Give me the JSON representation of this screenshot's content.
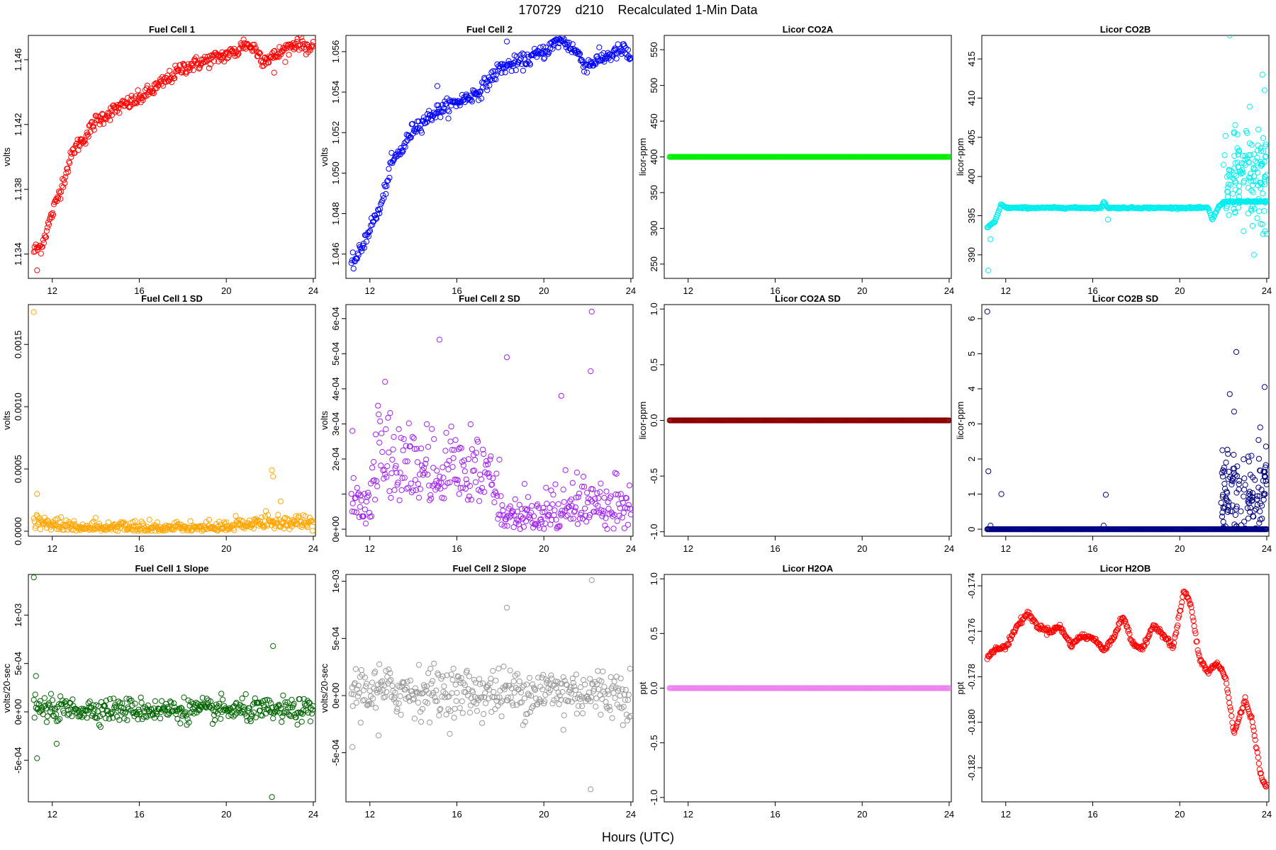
{
  "figure": {
    "title": "170729    d210    Recalculated 1-Min Data",
    "xlabel": "Hours (UTC)"
  },
  "chart_data": [
    {
      "type": "scatter",
      "title": "Fuel Cell 1",
      "ylabel": "volts",
      "color": "#ff0000",
      "xlim": [
        10.9,
        24.1
      ],
      "ylim": [
        1.1325,
        1.1475
      ],
      "xticks": [
        12,
        16,
        20,
        24
      ],
      "yticks": [
        1.134,
        1.138,
        1.142,
        1.146
      ],
      "ytick_labels": [
        "1.134",
        "1.138",
        "1.142",
        "1.146"
      ],
      "pattern": "curve",
      "noise": 0.00022,
      "anchors": [
        [
          11.15,
          1.1342
        ],
        [
          11.5,
          1.1345
        ],
        [
          12,
          1.1365
        ],
        [
          12.5,
          1.1385
        ],
        [
          13,
          1.1405
        ],
        [
          13.5,
          1.1412
        ],
        [
          14,
          1.1422
        ],
        [
          15,
          1.143
        ],
        [
          16,
          1.1436
        ],
        [
          17,
          1.1445
        ],
        [
          18,
          1.1455
        ],
        [
          19,
          1.1459
        ],
        [
          20,
          1.1463
        ],
        [
          20.5,
          1.1465
        ],
        [
          20.8,
          1.147
        ],
        [
          21.3,
          1.1467
        ],
        [
          21.7,
          1.146
        ],
        [
          22.2,
          1.1462
        ],
        [
          22.8,
          1.1467
        ],
        [
          23.3,
          1.1471
        ],
        [
          24,
          1.1466
        ]
      ],
      "outliers": [
        [
          11.3,
          1.133
        ],
        [
          22.2,
          1.1452
        ]
      ]
    },
    {
      "type": "scatter",
      "title": "Fuel Cell 2",
      "ylabel": "volts",
      "color": "#0000ff",
      "xlim": [
        10.9,
        24.1
      ],
      "ylim": [
        1.0448,
        1.0568
      ],
      "xticks": [
        12,
        16,
        20,
        24
      ],
      "yticks": [
        1.046,
        1.048,
        1.05,
        1.052,
        1.054,
        1.056
      ],
      "ytick_labels": [
        "1.046",
        "1.048",
        "1.050",
        "1.052",
        "1.054",
        "1.056"
      ],
      "pattern": "curve",
      "noise": 0.00018,
      "anchors": [
        [
          11.15,
          1.0455
        ],
        [
          11.5,
          1.046
        ],
        [
          12,
          1.0473
        ],
        [
          12.5,
          1.0483
        ],
        [
          13,
          1.0505
        ],
        [
          13.5,
          1.0512
        ],
        [
          14,
          1.0522
        ],
        [
          15,
          1.053
        ],
        [
          16,
          1.0535
        ],
        [
          17,
          1.054
        ],
        [
          18,
          1.0552
        ],
        [
          19,
          1.0555
        ],
        [
          20,
          1.056
        ],
        [
          20.8,
          1.0566
        ],
        [
          21.5,
          1.056
        ],
        [
          21.9,
          1.0553
        ],
        [
          22.5,
          1.0556
        ],
        [
          23.2,
          1.0559
        ],
        [
          23.7,
          1.0561
        ],
        [
          24,
          1.0556
        ]
      ],
      "outliers": [
        [
          15.1,
          1.0543
        ],
        [
          18.3,
          1.0565
        ]
      ]
    },
    {
      "type": "scatter",
      "title": "Licor CO2A",
      "ylabel": "licor-ppm",
      "color": "#00ee00",
      "xlim": [
        10.9,
        24.1
      ],
      "ylim": [
        230,
        570
      ],
      "xticks": [
        12,
        16,
        20,
        24
      ],
      "yticks": [
        250,
        300,
        350,
        400,
        450,
        500,
        550
      ],
      "ytick_labels": [
        "250",
        "300",
        "350",
        "400",
        "450",
        "500",
        "550"
      ],
      "pattern": "flat",
      "value": 400,
      "noise": 0,
      "anchors": [],
      "outliers": []
    },
    {
      "type": "scatter",
      "title": "Licor CO2B",
      "ylabel": "licor-ppm",
      "color": "#00eeee",
      "xlim": [
        10.9,
        24.1
      ],
      "ylim": [
        387,
        418
      ],
      "xticks": [
        12,
        16,
        20,
        24
      ],
      "yticks": [
        390,
        395,
        400,
        405,
        410,
        415
      ],
      "ytick_labels": [
        "390",
        "395",
        "400",
        "405",
        "410",
        "415"
      ],
      "pattern": "curve",
      "noise": 0.05,
      "anchors": [
        [
          11.15,
          393.5
        ],
        [
          11.5,
          394.2
        ],
        [
          11.8,
          396.5
        ],
        [
          12,
          396.0
        ],
        [
          16.4,
          396.0
        ],
        [
          16.5,
          396.8
        ],
        [
          16.7,
          396.0
        ],
        [
          21.3,
          396.0
        ],
        [
          21.5,
          394.5
        ],
        [
          21.8,
          396.2
        ],
        [
          22.1,
          396.8
        ],
        [
          24,
          396.8
        ]
      ],
      "burst": {
        "from": 22.0,
        "to": 24.0,
        "center": 400,
        "spread": 3.5,
        "count": 140
      },
      "outliers": [
        [
          11.2,
          388
        ],
        [
          11.3,
          392
        ],
        [
          16.7,
          394.5
        ],
        [
          22.3,
          418
        ],
        [
          23.8,
          413
        ],
        [
          23.9,
          411
        ],
        [
          22.5,
          405.5
        ]
      ]
    },
    {
      "type": "scatter",
      "title": "Fuel Cell 1 SD",
      "ylabel": "volts",
      "color": "#ffa500",
      "xlim": [
        10.9,
        24.1
      ],
      "ylim": [
        -4e-05,
        0.00182
      ],
      "xticks": [
        12,
        16,
        20,
        24
      ],
      "yticks": [
        0,
        0.0005,
        0.001,
        0.0015
      ],
      "ytick_labels": [
        "0.0000",
        "0.0005",
        "0.0010",
        "0.0015"
      ],
      "pattern": "noisefloor",
      "base": 4e-05,
      "noise": 3.5e-05,
      "anchors": [
        [
          11,
          6e-05
        ],
        [
          12,
          7e-05
        ],
        [
          13,
          3e-05
        ],
        [
          20,
          3e-05
        ],
        [
          20.5,
          7e-05
        ],
        [
          21,
          4e-05
        ],
        [
          22,
          8e-05
        ],
        [
          24,
          6e-05
        ]
      ],
      "outliers": [
        [
          11.15,
          0.00176
        ],
        [
          11.3,
          0.0003
        ],
        [
          22.1,
          0.00049
        ],
        [
          22.15,
          0.00044
        ],
        [
          22.5,
          0.00024
        ]
      ]
    },
    {
      "type": "scatter",
      "title": "Fuel Cell 2 SD",
      "ylabel": "volts",
      "color": "#a020f0",
      "xlim": [
        10.9,
        24.1
      ],
      "ylim": [
        -2e-05,
        0.00064
      ],
      "xticks": [
        12,
        16,
        20,
        24
      ],
      "yticks": [
        0,
        0.0001,
        0.0002,
        0.0003,
        0.0004,
        0.0005,
        0.0006
      ],
      "ytick_labels": [
        "0e+00",
        "",
        "2e-04",
        "3e-04",
        "4e-04",
        "5e-04",
        "6e-04"
      ],
      "pattern": "noisefloor",
      "noise": 5e-05,
      "anchors": [
        [
          11,
          9e-05
        ],
        [
          12,
          8e-05
        ],
        [
          12.5,
          0.00025
        ],
        [
          13,
          0.00018
        ],
        [
          16,
          0.00018
        ],
        [
          17.5,
          0.00015
        ],
        [
          18.2,
          3e-05
        ],
        [
          19.5,
          3e-05
        ],
        [
          20.5,
          5e-05
        ],
        [
          22,
          7e-05
        ],
        [
          24,
          8e-05
        ]
      ],
      "outliers": [
        [
          15.2,
          0.00054
        ],
        [
          18.3,
          0.00049
        ],
        [
          20.8,
          0.00038
        ],
        [
          22.2,
          0.00062
        ],
        [
          22.15,
          0.00045
        ],
        [
          11.2,
          0.00028
        ],
        [
          12.7,
          0.00042
        ]
      ]
    },
    {
      "type": "scatter",
      "title": "Licor CO2A SD",
      "ylabel": "licor-ppm",
      "color": "#8b0000",
      "xlim": [
        10.9,
        24.1
      ],
      "ylim": [
        -1.04,
        1.04
      ],
      "xticks": [
        12,
        16,
        20,
        24
      ],
      "yticks": [
        -1,
        -0.5,
        0,
        0.5,
        1
      ],
      "ytick_labels": [
        "-1.0",
        "-0.5",
        "0.0",
        "0.5",
        "1.0"
      ],
      "pattern": "flat",
      "value": 0,
      "noise": 0,
      "anchors": [],
      "outliers": []
    },
    {
      "type": "scatter",
      "title": "Licor CO2B SD",
      "ylabel": "licor-ppm",
      "color": "#000080",
      "xlim": [
        10.9,
        24.1
      ],
      "ylim": [
        -0.2,
        6.4
      ],
      "xticks": [
        12,
        16,
        20,
        24
      ],
      "yticks": [
        0,
        1,
        2,
        3,
        4,
        5,
        6
      ],
      "ytick_labels": [
        "0",
        "1",
        "2",
        "3",
        "4",
        "5",
        "6"
      ],
      "pattern": "flat",
      "value": 0,
      "noise": 0,
      "anchors": [],
      "burst": {
        "from": 21.9,
        "to": 24.0,
        "center": 0.9,
        "spread": 0.75,
        "count": 130
      },
      "outliers": [
        [
          11.15,
          6.2
        ],
        [
          11.2,
          1.65
        ],
        [
          11.8,
          1.0
        ],
        [
          11.3,
          0.1
        ],
        [
          16.6,
          0.98
        ],
        [
          16.5,
          0.1
        ],
        [
          22.3,
          3.85
        ],
        [
          22.5,
          3.35
        ],
        [
          22.6,
          5.05
        ],
        [
          23.9,
          4.05
        ],
        [
          23.7,
          2.9
        ]
      ]
    },
    {
      "type": "scatter",
      "title": "Fuel Cell 1 Slope",
      "ylabel": "volts/20-sec",
      "color": "#006400",
      "xlim": [
        10.9,
        24.1
      ],
      "ylim": [
        -0.00093,
        0.00142
      ],
      "xticks": [
        12,
        16,
        20,
        24
      ],
      "yticks": [
        -0.0005,
        0,
        0.0005,
        0.001
      ],
      "ytick_labels": [
        "-5e-04",
        "0e+00",
        "5e-04",
        "1e-03"
      ],
      "pattern": "noisefloor",
      "noise": 6e-05,
      "anchors": [
        [
          11,
          3e-05
        ],
        [
          24,
          1e-05
        ]
      ],
      "outliers": [
        [
          11.15,
          0.00139
        ],
        [
          11.25,
          0.00037
        ],
        [
          11.3,
          -0.00048
        ],
        [
          12.2,
          -0.00033
        ],
        [
          22.15,
          0.00068
        ],
        [
          22.1,
          -0.00088
        ]
      ]
    },
    {
      "type": "scatter",
      "title": "Fuel Cell 2 Slope",
      "ylabel": "volts/20-sec",
      "color": "#999999",
      "xlim": [
        10.9,
        24.1
      ],
      "ylim": [
        -0.00093,
        0.00106
      ],
      "xticks": [
        12,
        16,
        20,
        24
      ],
      "yticks": [
        -0.0005,
        0,
        0.0005,
        0.001
      ],
      "ytick_labels": [
        "-5e-04",
        "0e+00",
        "5e-04",
        "1e-03"
      ],
      "pattern": "noisefloor",
      "noise": 0.00011,
      "anchors": [
        [
          11,
          5e-05
        ],
        [
          18,
          2e-05
        ],
        [
          20,
          4e-05
        ],
        [
          24,
          2e-05
        ]
      ],
      "outliers": [
        [
          18.3,
          0.00077
        ],
        [
          22.2,
          0.00101
        ],
        [
          22.15,
          -0.00082
        ],
        [
          11.2,
          -0.00045
        ],
        [
          12.4,
          -0.00035
        ],
        [
          20.9,
          -0.0003
        ]
      ]
    },
    {
      "type": "scatter",
      "title": "Licor H2OA",
      "ylabel": "ppt",
      "color": "#ee82ee",
      "xlim": [
        10.9,
        24.1
      ],
      "ylim": [
        -1.04,
        1.04
      ],
      "xticks": [
        12,
        16,
        20,
        24
      ],
      "yticks": [
        -1,
        -0.5,
        0,
        0.5,
        1
      ],
      "ytick_labels": [
        "-1.0",
        "-0.5",
        "0.0",
        "0.5",
        "1.0"
      ],
      "pattern": "flat",
      "value": 0,
      "noise": 0,
      "anchors": [],
      "outliers": []
    },
    {
      "type": "scatter",
      "title": "Licor H2OB",
      "ylabel": "ppt",
      "color": "#ff0000",
      "xlim": [
        10.9,
        24.1
      ],
      "ylim": [
        -0.1835,
        -0.1735
      ],
      "xticks": [
        12,
        16,
        20,
        24
      ],
      "yticks": [
        -0.182,
        -0.18,
        -0.178,
        -0.176,
        -0.174
      ],
      "ytick_labels": [
        "-0.182",
        "-0.180",
        "-0.178",
        "-0.176",
        "-0.174"
      ],
      "pattern": "curve",
      "noise": 6e-05,
      "anchors": [
        [
          11.15,
          -0.1772
        ],
        [
          11.5,
          -0.1768
        ],
        [
          12,
          -0.1767
        ],
        [
          12.5,
          -0.1758
        ],
        [
          13,
          -0.1752
        ],
        [
          13.5,
          -0.1758
        ],
        [
          14,
          -0.176
        ],
        [
          14.5,
          -0.1758
        ],
        [
          15,
          -0.1766
        ],
        [
          15.5,
          -0.1762
        ],
        [
          16,
          -0.1763
        ],
        [
          16.5,
          -0.1768
        ],
        [
          17,
          -0.1762
        ],
        [
          17.4,
          -0.1753
        ],
        [
          17.8,
          -0.1765
        ],
        [
          18.3,
          -0.1768
        ],
        [
          18.8,
          -0.1757
        ],
        [
          19.3,
          -0.1762
        ],
        [
          19.7,
          -0.1767
        ],
        [
          20.2,
          -0.1742
        ],
        [
          20.5,
          -0.1748
        ],
        [
          20.9,
          -0.1772
        ],
        [
          21.3,
          -0.1778
        ],
        [
          21.7,
          -0.1774
        ],
        [
          22.1,
          -0.178
        ],
        [
          22.5,
          -0.1805
        ],
        [
          23,
          -0.179
        ],
        [
          23.3,
          -0.1798
        ],
        [
          23.7,
          -0.1822
        ],
        [
          24,
          -0.1829
        ]
      ],
      "outliers": []
    }
  ]
}
